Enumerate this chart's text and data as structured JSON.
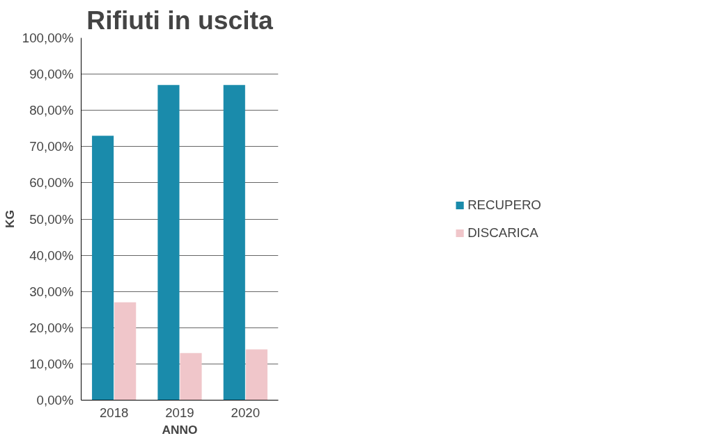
{
  "chart_data": {
    "type": "bar",
    "title": "Rifiuti in uscita",
    "xlabel": "ANNO",
    "ylabel": "KG",
    "categories": [
      "2018",
      "2019",
      "2020"
    ],
    "series": [
      {
        "name": "RECUPERO",
        "color": "#1a8bab",
        "values": [
          73,
          87,
          87
        ]
      },
      {
        "name": "DISCARICA",
        "color": "#f0c6ca",
        "values": [
          27,
          13,
          14
        ]
      }
    ],
    "ylim": [
      0,
      100
    ],
    "yticks": [
      {
        "value": 0,
        "label": "0,00%"
      },
      {
        "value": 10,
        "label": "10,00%"
      },
      {
        "value": 20,
        "label": "20,00%"
      },
      {
        "value": 30,
        "label": "30,00%"
      },
      {
        "value": 40,
        "label": "40,00%"
      },
      {
        "value": 50,
        "label": "50,00%"
      },
      {
        "value": 60,
        "label": "60,00%"
      },
      {
        "value": 70,
        "label": "70,00%"
      },
      {
        "value": 80,
        "label": "80,00%"
      },
      {
        "value": 90,
        "label": "90,00%"
      },
      {
        "value": 100,
        "label": "100,00%"
      }
    ],
    "grid": "y",
    "legend": "right"
  }
}
